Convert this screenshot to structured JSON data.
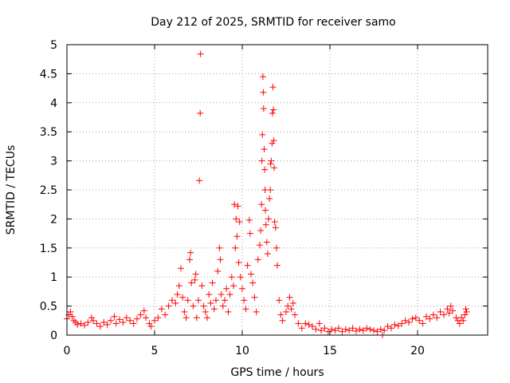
{
  "chart_data": {
    "type": "scatter",
    "title": "Day 212 of 2025, SRMTID for receiver samo",
    "xlabel": "GPS time / hours",
    "ylabel": "SRMTID / TECUs",
    "xlim": [
      0,
      24
    ],
    "ylim": [
      0,
      5
    ],
    "x_ticks": [
      0,
      5,
      10,
      15,
      20
    ],
    "y_ticks": [
      0,
      0.5,
      1,
      1.5,
      2,
      2.5,
      3,
      3.5,
      4,
      4.5,
      5
    ],
    "x_tick_labels": [
      "0",
      "5",
      "10",
      "15",
      "20"
    ],
    "y_tick_labels": [
      "0",
      "0.5",
      "1",
      "1.5",
      "2",
      "2.5",
      "3",
      "3.5",
      "4",
      "4.5",
      "5"
    ],
    "grid": true,
    "marker": "+",
    "marker_color": "#ff0000",
    "series": [
      {
        "name": "SRMTID",
        "points": [
          [
            0.0,
            0.28
          ],
          [
            0.1,
            0.35
          ],
          [
            0.2,
            0.4
          ],
          [
            0.3,
            0.32
          ],
          [
            0.4,
            0.25
          ],
          [
            0.5,
            0.22
          ],
          [
            0.6,
            0.18
          ],
          [
            0.8,
            0.2
          ],
          [
            1.0,
            0.17
          ],
          [
            1.2,
            0.22
          ],
          [
            1.4,
            0.3
          ],
          [
            1.5,
            0.25
          ],
          [
            1.7,
            0.2
          ],
          [
            1.9,
            0.15
          ],
          [
            2.1,
            0.22
          ],
          [
            2.3,
            0.18
          ],
          [
            2.5,
            0.25
          ],
          [
            2.7,
            0.32
          ],
          [
            2.8,
            0.2
          ],
          [
            3.0,
            0.27
          ],
          [
            3.2,
            0.22
          ],
          [
            3.4,
            0.3
          ],
          [
            3.6,
            0.25
          ],
          [
            3.8,
            0.2
          ],
          [
            4.0,
            0.28
          ],
          [
            4.2,
            0.35
          ],
          [
            4.4,
            0.42
          ],
          [
            4.5,
            0.3
          ],
          [
            4.7,
            0.2
          ],
          [
            4.8,
            0.15
          ],
          [
            5.0,
            0.25
          ],
          [
            5.2,
            0.3
          ],
          [
            5.4,
            0.45
          ],
          [
            5.6,
            0.35
          ],
          [
            5.8,
            0.5
          ],
          [
            6.0,
            0.6
          ],
          [
            6.2,
            0.55
          ],
          [
            6.3,
            0.7
          ],
          [
            6.4,
            0.85
          ],
          [
            6.5,
            1.15
          ],
          [
            6.6,
            0.65
          ],
          [
            6.7,
            0.4
          ],
          [
            6.8,
            0.3
          ],
          [
            6.9,
            0.6
          ],
          [
            7.0,
            1.3
          ],
          [
            7.05,
            1.42
          ],
          [
            7.1,
            0.9
          ],
          [
            7.2,
            0.5
          ],
          [
            7.3,
            0.95
          ],
          [
            7.35,
            1.05
          ],
          [
            7.4,
            0.3
          ],
          [
            7.5,
            0.6
          ],
          [
            7.55,
            2.66
          ],
          [
            7.6,
            3.82
          ],
          [
            7.62,
            4.84
          ],
          [
            7.7,
            0.85
          ],
          [
            7.8,
            0.5
          ],
          [
            7.9,
            0.4
          ],
          [
            8.0,
            0.3
          ],
          [
            8.1,
            0.7
          ],
          [
            8.2,
            0.55
          ],
          [
            8.3,
            0.9
          ],
          [
            8.4,
            0.45
          ],
          [
            8.5,
            0.6
          ],
          [
            8.6,
            1.1
          ],
          [
            8.7,
            1.5
          ],
          [
            8.75,
            1.3
          ],
          [
            8.8,
            0.7
          ],
          [
            8.9,
            0.5
          ],
          [
            9.0,
            0.6
          ],
          [
            9.1,
            0.8
          ],
          [
            9.2,
            0.4
          ],
          [
            9.3,
            0.7
          ],
          [
            9.4,
            1.0
          ],
          [
            9.5,
            0.85
          ],
          [
            9.55,
            2.25
          ],
          [
            9.6,
            1.5
          ],
          [
            9.65,
            2.0
          ],
          [
            9.7,
            1.7
          ],
          [
            9.75,
            2.22
          ],
          [
            9.8,
            1.25
          ],
          [
            9.85,
            1.95
          ],
          [
            9.9,
            1.0
          ],
          [
            10.0,
            0.8
          ],
          [
            10.1,
            0.6
          ],
          [
            10.2,
            0.45
          ],
          [
            10.3,
            1.2
          ],
          [
            10.4,
            1.98
          ],
          [
            10.45,
            1.75
          ],
          [
            10.5,
            1.05
          ],
          [
            10.6,
            0.9
          ],
          [
            10.7,
            0.65
          ],
          [
            10.8,
            0.4
          ],
          [
            10.9,
            1.3
          ],
          [
            11.0,
            1.55
          ],
          [
            11.05,
            1.8
          ],
          [
            11.1,
            2.25
          ],
          [
            11.12,
            3.0
          ],
          [
            11.15,
            3.45
          ],
          [
            11.18,
            4.45
          ],
          [
            11.2,
            4.18
          ],
          [
            11.22,
            3.9
          ],
          [
            11.25,
            3.2
          ],
          [
            11.28,
            2.85
          ],
          [
            11.3,
            2.5
          ],
          [
            11.32,
            2.15
          ],
          [
            11.35,
            1.9
          ],
          [
            11.4,
            1.6
          ],
          [
            11.45,
            1.4
          ],
          [
            11.5,
            2.0
          ],
          [
            11.55,
            2.35
          ],
          [
            11.6,
            2.5
          ],
          [
            11.62,
            2.95
          ],
          [
            11.65,
            3.0
          ],
          [
            11.7,
            3.3
          ],
          [
            11.72,
            3.82
          ],
          [
            11.75,
            4.27
          ],
          [
            11.78,
            3.88
          ],
          [
            11.8,
            3.35
          ],
          [
            11.82,
            2.88
          ],
          [
            11.85,
            1.95
          ],
          [
            11.9,
            1.85
          ],
          [
            11.95,
            1.5
          ],
          [
            12.0,
            1.2
          ],
          [
            12.1,
            0.6
          ],
          [
            12.2,
            0.35
          ],
          [
            12.3,
            0.25
          ],
          [
            12.5,
            0.4
          ],
          [
            12.6,
            0.5
          ],
          [
            12.7,
            0.65
          ],
          [
            12.8,
            0.45
          ],
          [
            12.9,
            0.55
          ],
          [
            13.0,
            0.35
          ],
          [
            13.2,
            0.2
          ],
          [
            13.4,
            0.12
          ],
          [
            13.6,
            0.2
          ],
          [
            13.8,
            0.18
          ],
          [
            14.0,
            0.15
          ],
          [
            14.2,
            0.1
          ],
          [
            14.4,
            0.2
          ],
          [
            14.5,
            0.08
          ],
          [
            14.7,
            0.12
          ],
          [
            14.9,
            0.06
          ],
          [
            15.1,
            0.1
          ],
          [
            15.3,
            0.08
          ],
          [
            15.5,
            0.12
          ],
          [
            15.7,
            0.06
          ],
          [
            15.9,
            0.1
          ],
          [
            16.1,
            0.08
          ],
          [
            16.3,
            0.12
          ],
          [
            16.5,
            0.07
          ],
          [
            16.7,
            0.1
          ],
          [
            16.9,
            0.08
          ],
          [
            17.1,
            0.12
          ],
          [
            17.3,
            0.1
          ],
          [
            17.5,
            0.08
          ],
          [
            17.7,
            0.06
          ],
          [
            17.9,
            0.1
          ],
          [
            18.0,
            0.0
          ],
          [
            18.1,
            0.08
          ],
          [
            18.3,
            0.15
          ],
          [
            18.5,
            0.12
          ],
          [
            18.7,
            0.18
          ],
          [
            18.9,
            0.16
          ],
          [
            19.1,
            0.2
          ],
          [
            19.3,
            0.25
          ],
          [
            19.5,
            0.22
          ],
          [
            19.7,
            0.28
          ],
          [
            19.9,
            0.3
          ],
          [
            20.1,
            0.25
          ],
          [
            20.3,
            0.2
          ],
          [
            20.5,
            0.32
          ],
          [
            20.7,
            0.28
          ],
          [
            20.9,
            0.35
          ],
          [
            21.1,
            0.3
          ],
          [
            21.3,
            0.4
          ],
          [
            21.5,
            0.35
          ],
          [
            21.7,
            0.45
          ],
          [
            21.8,
            0.38
          ],
          [
            21.9,
            0.5
          ],
          [
            22.0,
            0.42
          ],
          [
            22.2,
            0.3
          ],
          [
            22.3,
            0.25
          ],
          [
            22.4,
            0.2
          ],
          [
            22.5,
            0.3
          ],
          [
            22.6,
            0.25
          ],
          [
            22.7,
            0.35
          ],
          [
            22.75,
            0.45
          ],
          [
            22.8,
            0.4
          ]
        ]
      }
    ]
  }
}
